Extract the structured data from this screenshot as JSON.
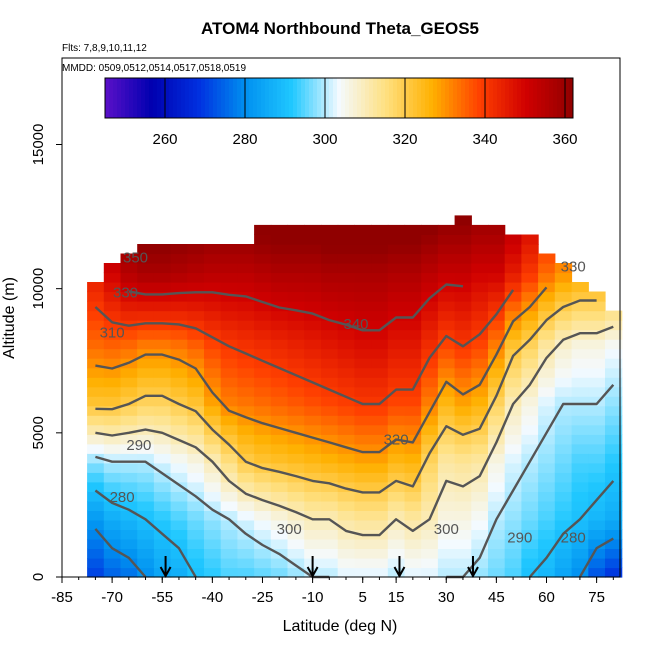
{
  "title": "ATOM4 Northbound Theta_GEOS5",
  "flights_label": "Flts: 7,8,9,10,11,12",
  "dates_label": "MMDD: 0509,0512,0514,0517,0518,0519",
  "xlabel": "Latitude (deg N)",
  "ylabel": "Altitude (m)",
  "colors": {
    "colormap": [
      "#5b10c8",
      "#0000b0",
      "#0030e0",
      "#0090f0",
      "#20c8ff",
      "#f4faff",
      "#ffe080",
      "#ffb000",
      "#ff4000",
      "#d00000",
      "#900000"
    ],
    "contour": "#555555",
    "arrow": "#000000"
  },
  "chart_data": {
    "type": "heatmap",
    "variable": "Theta (K)",
    "xlim": [
      -85,
      82
    ],
    "ylim": [
      0,
      18000
    ],
    "x_ticks": [
      -85,
      -70,
      -55,
      -40,
      -25,
      -10,
      5,
      15,
      30,
      45,
      60,
      75
    ],
    "y_ticks": [
      0,
      5000,
      10000,
      15000
    ],
    "colorbar": {
      "min": 245,
      "max": 362,
      "ticks": [
        260,
        280,
        300,
        320,
        340,
        360
      ]
    },
    "contour_levels": [
      280,
      290,
      300,
      310,
      320,
      330,
      340,
      350
    ],
    "profile_arrows_lat": [
      -54,
      -10,
      16,
      38
    ],
    "columns": [
      {
        "lat": -85,
        "top": 10500,
        "t": [
          null,
          null,
          null,
          null,
          null,
          null
        ]
      },
      {
        "lat": -80,
        "top": 10500,
        "t": [
          null,
          null,
          null,
          null,
          null,
          null
        ]
      },
      {
        "lat": -75,
        "top": 10500,
        "t": [
          270,
          282,
          298,
          322,
          334,
          345
        ]
      },
      {
        "lat": -70,
        "top": 11000,
        "t": [
          274,
          286,
          300,
          322,
          335,
          350
        ]
      },
      {
        "lat": -65,
        "top": 11500,
        "t": [
          276,
          288,
          300,
          320,
          334,
          355
        ]
      },
      {
        "lat": -60,
        "top": 11800,
        "t": [
          280,
          290,
          300,
          318,
          332,
          357
        ]
      },
      {
        "lat": -55,
        "top": 11800,
        "t": [
          284,
          292,
          302,
          318,
          332,
          357
        ]
      },
      {
        "lat": -50,
        "top": 11800,
        "t": [
          286,
          294,
          304,
          320,
          333,
          356
        ]
      },
      {
        "lat": -45,
        "top": 11800,
        "t": [
          290,
          296,
          306,
          322,
          335,
          355
        ]
      },
      {
        "lat": -40,
        "top": 11800,
        "t": [
          292,
          298,
          310,
          328,
          338,
          354
        ]
      },
      {
        "lat": -35,
        "top": 11800,
        "t": [
          294,
          300,
          315,
          332,
          340,
          354
        ]
      },
      {
        "lat": -30,
        "top": 11800,
        "t": [
          294,
          302,
          320,
          333,
          341,
          354
        ]
      },
      {
        "lat": -25,
        "top": 12300,
        "t": [
          295,
          304,
          322,
          334,
          342,
          355
        ]
      },
      {
        "lat": -20,
        "top": 12300,
        "t": [
          296,
          306,
          323,
          335,
          343,
          356
        ]
      },
      {
        "lat": -15,
        "top": 12300,
        "t": [
          298,
          308,
          324,
          336,
          344,
          356
        ]
      },
      {
        "lat": -10,
        "top": 12300,
        "t": [
          300,
          310,
          325,
          337,
          345,
          356
        ]
      },
      {
        "lat": -5,
        "top": 12300,
        "t": [
          300,
          310,
          326,
          338,
          346,
          357
        ]
      },
      {
        "lat": 0,
        "top": 12300,
        "t": [
          302,
          312,
          327,
          339,
          347,
          357
        ]
      },
      {
        "lat": 5,
        "top": 12300,
        "t": [
          302,
          313,
          328,
          340,
          348,
          357
        ]
      },
      {
        "lat": 10,
        "top": 12300,
        "t": [
          302,
          313,
          328,
          340,
          348,
          357
        ]
      },
      {
        "lat": 15,
        "top": 12300,
        "t": [
          300,
          310,
          325,
          338,
          346,
          356
        ]
      },
      {
        "lat": 20,
        "top": 12300,
        "t": [
          302,
          312,
          326,
          338,
          346,
          356
        ]
      },
      {
        "lat": 25,
        "top": 12300,
        "t": [
          302,
          310,
          318,
          332,
          342,
          354
        ]
      },
      {
        "lat": 30,
        "top": 12300,
        "t": [
          300,
          306,
          312,
          325,
          338,
          352
        ]
      },
      {
        "lat": 35,
        "top": 12800,
        "t": [
          300,
          306,
          313,
          328,
          340,
          352
        ]
      },
      {
        "lat": 40,
        "top": 12300,
        "t": [
          298,
          304,
          312,
          326,
          338,
          350
        ]
      },
      {
        "lat": 45,
        "top": 12300,
        "t": [
          296,
          300,
          306,
          318,
          332,
          350
        ]
      },
      {
        "lat": 50,
        "top": 12000,
        "t": [
          294,
          298,
          302,
          310,
          322,
          345
        ]
      },
      {
        "lat": 55,
        "top": 12000,
        "t": [
          290,
          296,
          300,
          306,
          318,
          340
        ]
      },
      {
        "lat": 60,
        "top": 11500,
        "t": [
          288,
          294,
          298,
          302,
          312,
          334
        ]
      },
      {
        "lat": 65,
        "top": 11000,
        "t": [
          284,
          292,
          296,
          300,
          308,
          330
        ]
      },
      {
        "lat": 70,
        "top": 10500,
        "t": [
          280,
          290,
          294,
          300,
          306,
          328
        ]
      },
      {
        "lat": 75,
        "top": 10000,
        "t": [
          272,
          288,
          294,
          300,
          306,
          328
        ]
      },
      {
        "lat": 80,
        "top": 9500,
        "t": [
          268,
          286,
          292,
          298,
          304,
          326
        ]
      }
    ],
    "contour_labels": [
      {
        "value": "350",
        "lat": -63,
        "alt": 10900
      },
      {
        "value": "330",
        "lat": -66,
        "alt": 9700
      },
      {
        "value": "310",
        "lat": -70,
        "alt": 8300
      },
      {
        "value": "340",
        "lat": 3,
        "alt": 8600
      },
      {
        "value": "320",
        "lat": 15,
        "alt": 4600
      },
      {
        "value": "290",
        "lat": -62,
        "alt": 4400
      },
      {
        "value": "280",
        "lat": -67,
        "alt": 2600
      },
      {
        "value": "300",
        "lat": -17,
        "alt": 1500
      },
      {
        "value": "300",
        "lat": 30,
        "alt": 1500
      },
      {
        "value": "290",
        "lat": 52,
        "alt": 1200
      },
      {
        "value": "280",
        "lat": 68,
        "alt": 1200
      },
      {
        "value": "330",
        "lat": 68,
        "alt": 10600
      }
    ]
  }
}
